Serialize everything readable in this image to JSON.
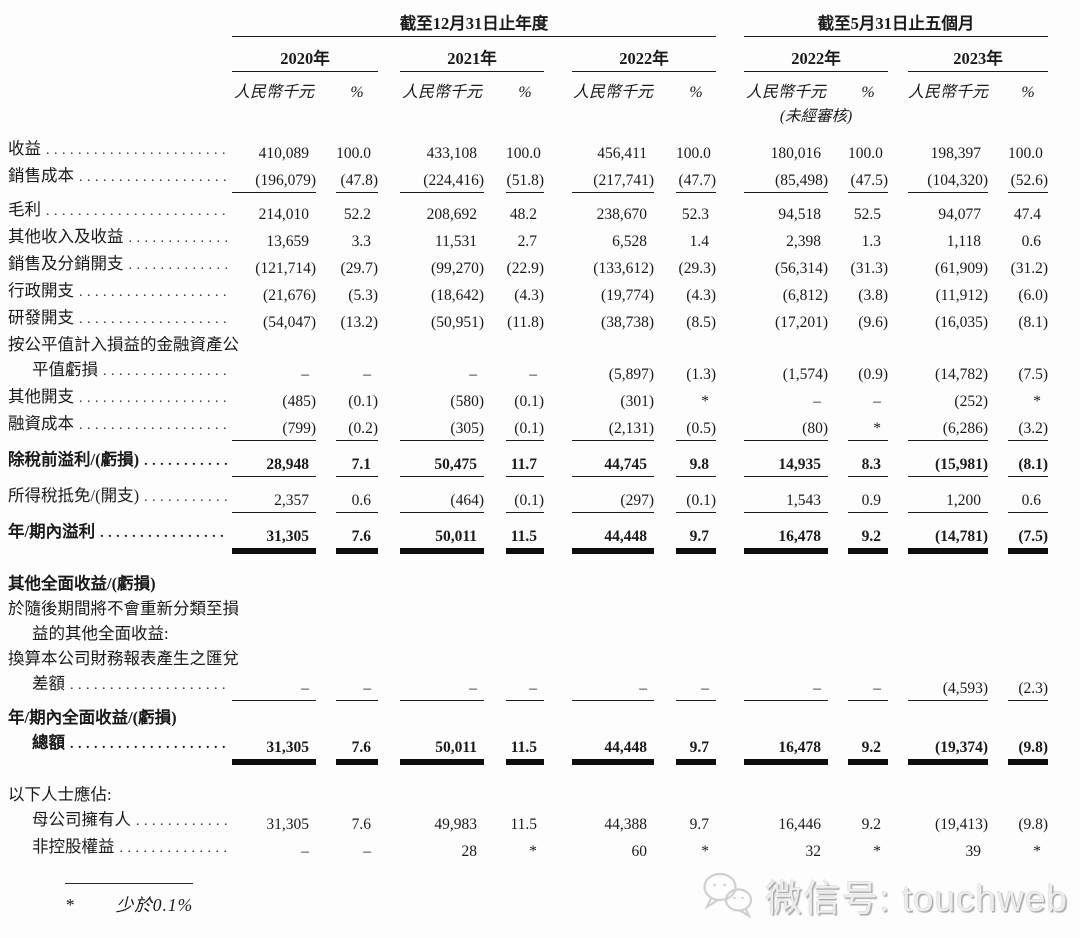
{
  "header": {
    "group1": "截至12月31日止年度",
    "group2": "截至5月31日止五個月",
    "years": [
      "2020年",
      "2021年",
      "2022年",
      "2022年",
      "2023年"
    ],
    "unit_label": "人民幣千元",
    "pct_label": "%",
    "unaudited": "(未經審核)"
  },
  "rows": [
    {
      "label_lines": [
        {
          "text": "收益",
          "indent": 0,
          "dots": true
        }
      ],
      "bold": false,
      "rule": "none",
      "values": [
        "410,089",
        "100.0",
        "433,108",
        "100.0",
        "456,411",
        "100.0",
        "180,016",
        "100.0",
        "198,397",
        "100.0"
      ]
    },
    {
      "label_lines": [
        {
          "text": "銷售成本",
          "indent": 0,
          "dots": true
        }
      ],
      "bold": false,
      "rule": "thin",
      "values": [
        "(196,079)",
        "(47.8)",
        "(224,416)",
        "(51.8)",
        "(217,741)",
        "(47.7)",
        "(85,498)",
        "(47.5)",
        "(104,320)",
        "(52.6)"
      ]
    },
    {
      "label_lines": [
        {
          "text": "毛利",
          "indent": 0,
          "dots": true
        }
      ],
      "bold": false,
      "rule": "none",
      "values": [
        "214,010",
        "52.2",
        "208,692",
        "48.2",
        "238,670",
        "52.3",
        "94,518",
        "52.5",
        "94,077",
        "47.4"
      ]
    },
    {
      "label_lines": [
        {
          "text": "其他收入及收益",
          "indent": 0,
          "dots": true
        }
      ],
      "bold": false,
      "rule": "none",
      "values": [
        "13,659",
        "3.3",
        "11,531",
        "2.7",
        "6,528",
        "1.4",
        "2,398",
        "1.3",
        "1,118",
        "0.6"
      ]
    },
    {
      "label_lines": [
        {
          "text": "銷售及分銷開支",
          "indent": 0,
          "dots": true
        }
      ],
      "bold": false,
      "rule": "none",
      "values": [
        "(121,714)",
        "(29.7)",
        "(99,270)",
        "(22.9)",
        "(133,612)",
        "(29.3)",
        "(56,314)",
        "(31.3)",
        "(61,909)",
        "(31.2)"
      ]
    },
    {
      "label_lines": [
        {
          "text": "行政開支",
          "indent": 0,
          "dots": true
        }
      ],
      "bold": false,
      "rule": "none",
      "values": [
        "(21,676)",
        "(5.3)",
        "(18,642)",
        "(4.3)",
        "(19,774)",
        "(4.3)",
        "(6,812)",
        "(3.8)",
        "(11,912)",
        "(6.0)"
      ]
    },
    {
      "label_lines": [
        {
          "text": "研發開支",
          "indent": 0,
          "dots": true
        }
      ],
      "bold": false,
      "rule": "none",
      "values": [
        "(54,047)",
        "(13.2)",
        "(50,951)",
        "(11.8)",
        "(38,738)",
        "(8.5)",
        "(17,201)",
        "(9.6)",
        "(16,035)",
        "(8.1)"
      ]
    },
    {
      "label_lines": [
        {
          "text": "按公平值計入損益的金融資產公",
          "indent": 0,
          "dots": false
        },
        {
          "text": "平值虧損",
          "indent": 1,
          "dots": true
        }
      ],
      "bold": false,
      "rule": "none",
      "values": [
        "–",
        "–",
        "–",
        "–",
        "(5,897)",
        "(1.3)",
        "(1,574)",
        "(0.9)",
        "(14,782)",
        "(7.5)"
      ]
    },
    {
      "label_lines": [
        {
          "text": "其他開支",
          "indent": 0,
          "dots": true
        }
      ],
      "bold": false,
      "rule": "none",
      "values": [
        "(485)",
        "(0.1)",
        "(580)",
        "(0.1)",
        "(301)",
        "*",
        "–",
        "–",
        "(252)",
        "*"
      ]
    },
    {
      "label_lines": [
        {
          "text": "融資成本",
          "indent": 0,
          "dots": true
        }
      ],
      "bold": false,
      "rule": "thin",
      "values": [
        "(799)",
        "(0.2)",
        "(305)",
        "(0.1)",
        "(2,131)",
        "(0.5)",
        "(80)",
        "*",
        "(6,286)",
        "(3.2)"
      ]
    },
    {
      "label_lines": [
        {
          "text": "除稅前溢利/(虧損)",
          "indent": 0,
          "dots": true
        }
      ],
      "bold": true,
      "rule": "thin",
      "tall": true,
      "values": [
        "28,948",
        "7.1",
        "50,475",
        "11.7",
        "44,745",
        "9.8",
        "14,935",
        "8.3",
        "(15,981)",
        "(8.1)"
      ]
    },
    {
      "label_lines": [
        {
          "text": "所得稅抵免/(開支)",
          "indent": 0,
          "dots": true
        }
      ],
      "bold": false,
      "rule": "thin",
      "tall": true,
      "values": [
        "2,357",
        "0.6",
        "(464)",
        "(0.1)",
        "(297)",
        "(0.1)",
        "1,543",
        "0.9",
        "1,200",
        "0.6"
      ]
    },
    {
      "label_lines": [
        {
          "text": "年/期內溢利",
          "indent": 0,
          "dots": true
        }
      ],
      "bold": true,
      "rule": "double",
      "gap_after": true,
      "tall": true,
      "values": [
        "31,305",
        "7.6",
        "50,011",
        "11.5",
        "44,448",
        "9.7",
        "16,478",
        "9.2",
        "(14,781)",
        "(7.5)"
      ]
    },
    {
      "label_lines": [
        {
          "text": "其他全面收益/(虧損)",
          "indent": 0,
          "dots": false
        }
      ],
      "bold": true,
      "rule": "none",
      "values": [
        "",
        "",
        "",
        "",
        "",
        "",
        "",
        "",
        "",
        ""
      ]
    },
    {
      "label_lines": [
        {
          "text": "於隨後期間將不會重新分類至損",
          "indent": 0,
          "dots": false
        },
        {
          "text": "益的其他全面收益:",
          "indent": 1,
          "dots": false
        }
      ],
      "bold": false,
      "rule": "none",
      "values": [
        "",
        "",
        "",
        "",
        "",
        "",
        "",
        "",
        "",
        ""
      ]
    },
    {
      "label_lines": [
        {
          "text": "換算本公司財務報表產生之匯兌",
          "indent": 0,
          "dots": false
        },
        {
          "text": "差額",
          "indent": 1,
          "dots": true
        }
      ],
      "bold": false,
      "rule": "thin",
      "values": [
        "–",
        "–",
        "–",
        "–",
        "–",
        "–",
        "–",
        "–",
        "(4,593)",
        "(2.3)"
      ]
    },
    {
      "label_lines": [
        {
          "text": "年/期內全面收益/(虧損)",
          "indent": 0,
          "dots": false
        },
        {
          "text": "總額",
          "indent": 1,
          "dots": true
        }
      ],
      "bold": true,
      "rule": "double",
      "gap_after": true,
      "values": [
        "31,305",
        "7.6",
        "50,011",
        "11.5",
        "44,448",
        "9.7",
        "16,478",
        "9.2",
        "(19,374)",
        "(9.8)"
      ]
    },
    {
      "label_lines": [
        {
          "text": "以下人士應佔:",
          "indent": 0,
          "dots": false
        }
      ],
      "bold": false,
      "rule": "none",
      "values": [
        "",
        "",
        "",
        "",
        "",
        "",
        "",
        "",
        "",
        ""
      ]
    },
    {
      "label_lines": [
        {
          "text": "母公司擁有人",
          "indent": 1,
          "dots": true
        }
      ],
      "bold": false,
      "rule": "none",
      "values": [
        "31,305",
        "7.6",
        "49,983",
        "11.5",
        "44,388",
        "9.7",
        "16,446",
        "9.2",
        "(19,413)",
        "(9.8)"
      ]
    },
    {
      "label_lines": [
        {
          "text": "非控股權益",
          "indent": 1,
          "dots": true
        }
      ],
      "bold": false,
      "rule": "none",
      "values": [
        "–",
        "–",
        "28",
        "*",
        "60",
        "*",
        "32",
        "*",
        "39",
        "*"
      ]
    }
  ],
  "footnote": {
    "symbol": "*",
    "text": "少於0.1%"
  },
  "watermark": {
    "icon": "wechat-icon",
    "text": "微信号: touchweb"
  }
}
